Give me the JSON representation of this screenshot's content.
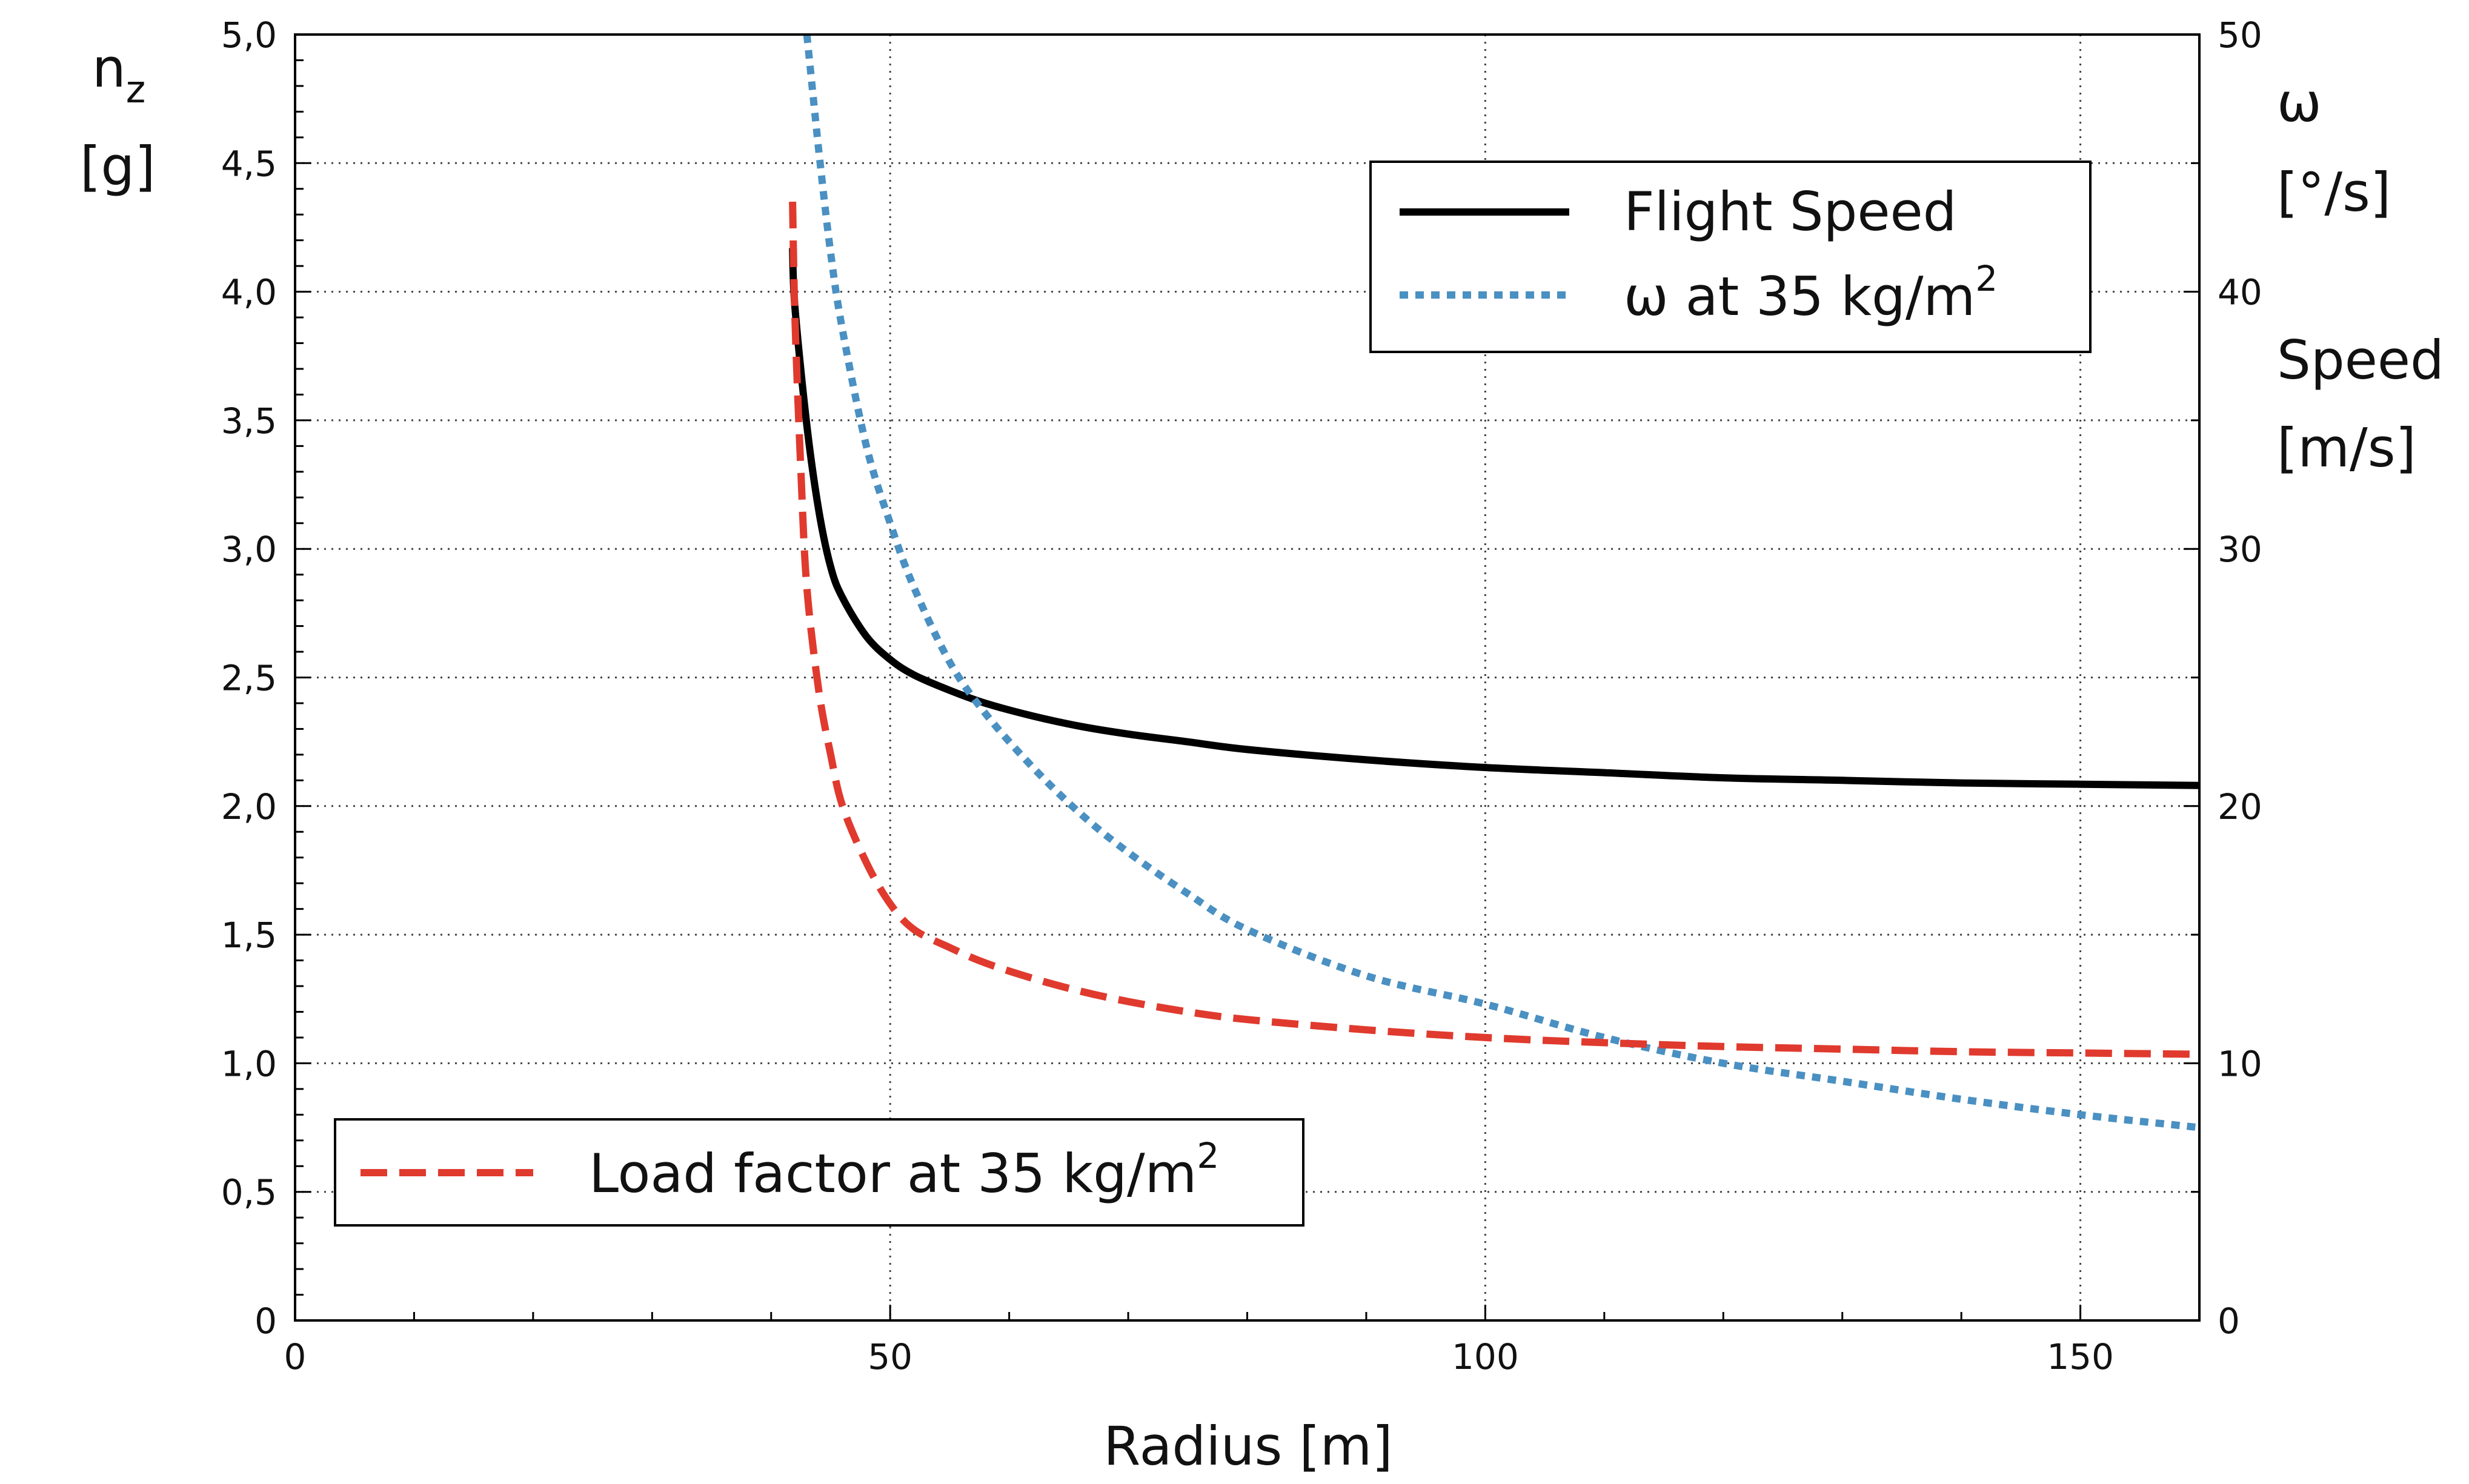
{
  "chart_data": {
    "type": "line",
    "xlabel": "Radius [m]",
    "ylabel_left": "n",
    "ylabel_left_sub": "z",
    "ylabel_left_unit": "[g]",
    "ylabel_right_omega": "ω",
    "ylabel_right_omega_unit": "[°/s]",
    "ylabel_right_speed": "Speed",
    "ylabel_right_speed_unit": "[m/s]",
    "xlim": [
      0,
      160
    ],
    "ylim_left": [
      0,
      5.0
    ],
    "ylim_right": [
      0,
      50
    ],
    "grid": true,
    "x_ticks": [
      {
        "value": 0,
        "label": "0"
      },
      {
        "value": 50,
        "label": "50"
      },
      {
        "value": 100,
        "label": "100"
      },
      {
        "value": 150,
        "label": "150"
      }
    ],
    "y_left_ticks": [
      {
        "value": 0,
        "label": "0"
      },
      {
        "value": 0.5,
        "label": "0,5"
      },
      {
        "value": 1.0,
        "label": "1,0"
      },
      {
        "value": 1.5,
        "label": "1,5"
      },
      {
        "value": 2.0,
        "label": "2,0"
      },
      {
        "value": 2.5,
        "label": "2,5"
      },
      {
        "value": 3.0,
        "label": "3,0"
      },
      {
        "value": 3.5,
        "label": "3,5"
      },
      {
        "value": 4.0,
        "label": "4,0"
      },
      {
        "value": 4.5,
        "label": "4,5"
      },
      {
        "value": 5.0,
        "label": "5,0"
      }
    ],
    "y_right_ticks": [
      {
        "value": 0,
        "label": "0"
      },
      {
        "value": 10,
        "label": "10"
      },
      {
        "value": 20,
        "label": "20"
      },
      {
        "value": 30,
        "label": "30"
      },
      {
        "value": 40,
        "label": "40"
      },
      {
        "value": 50,
        "label": "50"
      }
    ],
    "series": [
      {
        "name": "Flight Speed",
        "axis": "right",
        "color": "#000000",
        "style": "solid",
        "x": [
          41.8,
          42,
          43,
          44,
          45,
          46,
          48,
          50,
          52,
          55,
          58,
          62,
          66,
          70,
          75,
          80,
          90,
          100,
          110,
          120,
          130,
          140,
          150,
          160
        ],
        "y": [
          41.7,
          39.4,
          34.8,
          31.5,
          29.3,
          28.1,
          26.6,
          25.7,
          25.1,
          24.5,
          24.0,
          23.5,
          23.1,
          22.8,
          22.5,
          22.2,
          21.8,
          21.5,
          21.3,
          21.1,
          21.0,
          20.9,
          20.85,
          20.8
        ]
      },
      {
        "name": "ω at 35 kg/m",
        "name_sup": "2",
        "axis": "right",
        "color": "#4a90c2",
        "style": "dotted",
        "x": [
          43,
          44,
          45,
          46,
          48,
          50,
          52,
          55,
          58,
          62,
          66,
          70,
          75,
          80,
          90,
          100,
          110,
          120,
          130,
          140,
          150,
          160
        ],
        "y": [
          50,
          45.5,
          41.5,
          38.5,
          34.0,
          31.0,
          28.5,
          25.6,
          23.6,
          21.5,
          19.7,
          18.2,
          16.6,
          15.2,
          13.4,
          12.3,
          11.0,
          10.0,
          9.3,
          8.6,
          8.0,
          7.5
        ]
      },
      {
        "name": "Load factor at 35 kg/m",
        "name_sup": "2",
        "axis": "left",
        "color": "#e03a2e",
        "style": "dashed",
        "x": [
          41.8,
          42,
          42.5,
          43,
          44,
          45,
          46,
          48,
          50,
          52,
          55,
          58,
          62,
          66,
          70,
          75,
          80,
          90,
          100,
          110,
          120,
          130,
          140,
          150,
          160
        ],
        "y": [
          4.35,
          3.9,
          3.3,
          2.85,
          2.45,
          2.2,
          2.0,
          1.78,
          1.62,
          1.52,
          1.45,
          1.39,
          1.33,
          1.28,
          1.24,
          1.2,
          1.17,
          1.13,
          1.1,
          1.08,
          1.065,
          1.055,
          1.045,
          1.04,
          1.035
        ]
      }
    ]
  }
}
